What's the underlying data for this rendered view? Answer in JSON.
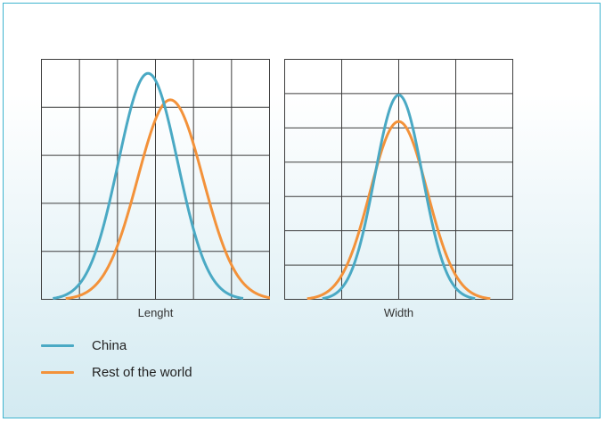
{
  "colors": {
    "china": "#4aa9c4",
    "rest": "#f3923a",
    "grid": "#3d3d3d"
  },
  "chart_data": [
    {
      "type": "line",
      "xlabel": "Lenght",
      "ylabel": "",
      "grid": true,
      "x_grid_divisions": 6,
      "y_grid_divisions": 5,
      "series": [
        {
          "name": "China",
          "mean": 0.0,
          "sd": 1.0,
          "peak": 0.94
        },
        {
          "name": "Rest of the world",
          "mean": 0.75,
          "sd": 1.1,
          "peak": 0.83
        }
      ]
    },
    {
      "type": "line",
      "xlabel": "Width",
      "ylabel": "",
      "grid": true,
      "x_grid_divisions": 4,
      "y_grid_divisions": 7,
      "series": [
        {
          "name": "China",
          "mean": 0.0,
          "sd": 1.0,
          "peak": 0.85
        },
        {
          "name": "Rest of the world",
          "mean": 0.0,
          "sd": 1.2,
          "peak": 0.74
        }
      ]
    }
  ],
  "legend": [
    {
      "label": "China",
      "color": "#4aa9c4"
    },
    {
      "label": "Rest of the world",
      "color": "#f3923a"
    }
  ]
}
